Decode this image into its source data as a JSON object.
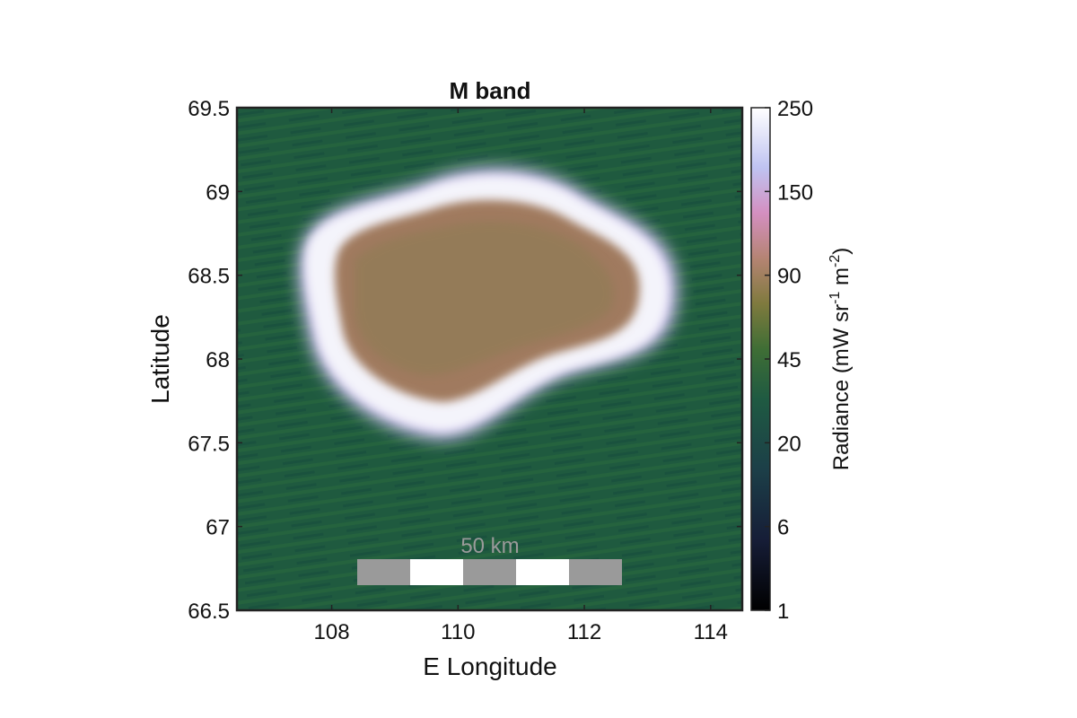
{
  "chart_data": {
    "type": "heatmap",
    "title": "M band",
    "xlabel": "E Longitude",
    "ylabel": "Latitude",
    "xlim": [
      106.5,
      114.5
    ],
    "ylim": [
      66.5,
      69.5
    ],
    "x_ticks": [
      "108",
      "110",
      "112",
      "114"
    ],
    "y_ticks": [
      "69.5",
      "69",
      "68.5",
      "68",
      "67.5",
      "67",
      "66.5"
    ],
    "colorbar": {
      "label_main": "Radiance (mW sr",
      "sup1": "-1",
      "label_mid": " m",
      "sup2": "-2",
      "label_end": ")",
      "ticks": [
        "250",
        "150",
        "90",
        "45",
        "20",
        "6",
        "1"
      ],
      "scale": "log",
      "range": [
        1,
        250
      ]
    },
    "scale_bar": {
      "label": "50 km",
      "segments": 5
    },
    "colormap": [
      "#000000",
      "#1a2a4a",
      "#1f4d3f",
      "#2e6b3a",
      "#5a7a32",
      "#8c7a4a",
      "#c27c8f",
      "#d99acb",
      "#c9c8ef",
      "#ffffff"
    ],
    "annotation_feature": "bright ring, interior ~45-90, background ~10-20"
  }
}
